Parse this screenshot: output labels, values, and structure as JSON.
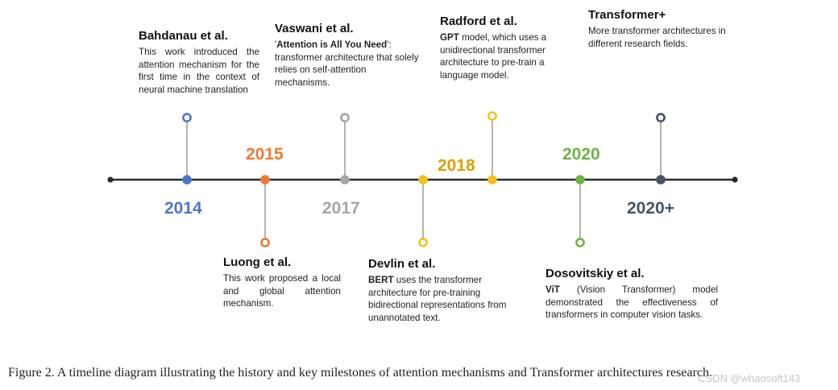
{
  "colors": {
    "axis": "#2b2b2b",
    "connector": "#9a9a9a",
    "y2014": "#4a78c8",
    "y2015": "#ec7a34",
    "y2017": "#a6a6a6",
    "y2018": "#f2c21b",
    "y2020": "#6fb344",
    "y2020plus": "#44546a"
  },
  "years": [
    {
      "label": "2014",
      "color": "#4a78c8"
    },
    {
      "label": "2015",
      "color": "#ec7a34"
    },
    {
      "label": "2017",
      "color": "#a6a6a6"
    },
    {
      "label": "2018",
      "color": "#d9a300"
    },
    {
      "label": "2020",
      "color": "#6fb344"
    },
    {
      "label": "2020+",
      "color": "#44546a"
    }
  ],
  "events": {
    "bahdanau": {
      "title": "Bahdanau et al.",
      "body": "This work introduced the attention mechanism for the first time in the context of neural machine translation"
    },
    "luong": {
      "title": "Luong et al.",
      "body": "This work proposed a local and global attention mechanism."
    },
    "vaswani": {
      "title": "Vaswani et al.",
      "quote_open": "'",
      "bold": "Attention is All You Need",
      "quote_close": "':",
      "body": " transformer architecture that solely relies on self-attention mechanisms."
    },
    "devlin": {
      "title": "Devlin et al.",
      "bold": "BERT",
      "body": " uses the transformer architecture for pre-training bidirectional representations from unannotated text."
    },
    "radford": {
      "title": "Radford et al.",
      "bold": "GPT",
      "body": " model, which uses a unidirectional transformer architecture to pre-train a language model."
    },
    "dosovitskiy": {
      "title": "Dosovitskiy et al.",
      "bold": "ViT",
      "body": " (Vision Transformer) model demonstrated the effectiveness of transformers in computer vision tasks."
    },
    "transformer_plus": {
      "title": "Transformer+",
      "body": "More transformer architectures in different research fields."
    }
  },
  "caption": "Figure 2.   A timeline diagram illustrating the history and key milestones of attention mechanisms and Transformer architectures research.",
  "watermark": "CSDN @whaosoft143"
}
